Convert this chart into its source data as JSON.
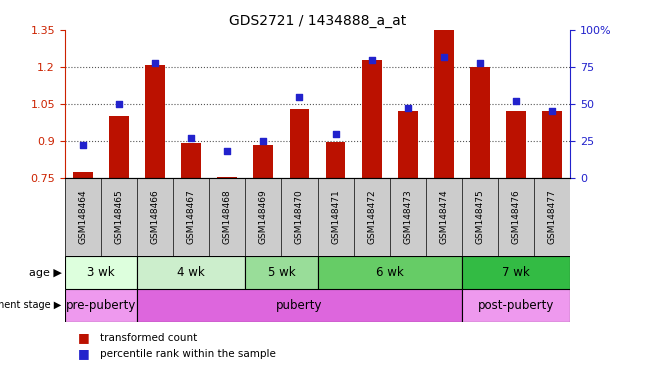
{
  "title": "GDS2721 / 1434888_a_at",
  "samples": [
    "GSM148464",
    "GSM148465",
    "GSM148466",
    "GSM148467",
    "GSM148468",
    "GSM148469",
    "GSM148470",
    "GSM148471",
    "GSM148472",
    "GSM148473",
    "GSM148474",
    "GSM148475",
    "GSM148476",
    "GSM148477"
  ],
  "transformed_count": [
    0.775,
    1.0,
    1.21,
    0.89,
    0.755,
    0.885,
    1.03,
    0.895,
    1.23,
    1.02,
    1.35,
    1.2,
    1.02,
    1.02
  ],
  "percentile_rank": [
    22,
    50,
    78,
    27,
    18,
    25,
    55,
    30,
    80,
    47,
    82,
    78,
    52,
    45
  ],
  "ylim_left": [
    0.75,
    1.35
  ],
  "ylim_right": [
    0,
    100
  ],
  "yticks_left": [
    0.75,
    0.9,
    1.05,
    1.2,
    1.35
  ],
  "yticks_right": [
    0,
    25,
    50,
    75,
    100
  ],
  "bar_color": "#bb1100",
  "dot_color": "#2222cc",
  "age_groups": [
    {
      "label": "3 wk",
      "start": 0,
      "end": 1,
      "color": "#ddffdd"
    },
    {
      "label": "4 wk",
      "start": 2,
      "end": 4,
      "color": "#bbeecc"
    },
    {
      "label": "5 wk",
      "start": 5,
      "end": 6,
      "color": "#88dd99"
    },
    {
      "label": "6 wk",
      "start": 7,
      "end": 9,
      "color": "#55cc77"
    },
    {
      "label": "7 wk",
      "start": 10,
      "end": 12,
      "color": "#33bb44"
    }
  ],
  "dev_groups": [
    {
      "label": "pre-puberty",
      "start": 0,
      "end": 1,
      "color": "#ee99ee"
    },
    {
      "label": "puberty",
      "start": 2,
      "end": 9,
      "color": "#dd66dd"
    },
    {
      "label": "post-puberty",
      "start": 10,
      "end": 12,
      "color": "#dd66dd"
    }
  ],
  "grid_color": "#555555",
  "tick_color_left": "#cc2200",
  "tick_color_right": "#2222cc",
  "xlabel_bg": "#cccccc",
  "legend_bar_color": "#bb1100",
  "legend_dot_color": "#2222cc"
}
